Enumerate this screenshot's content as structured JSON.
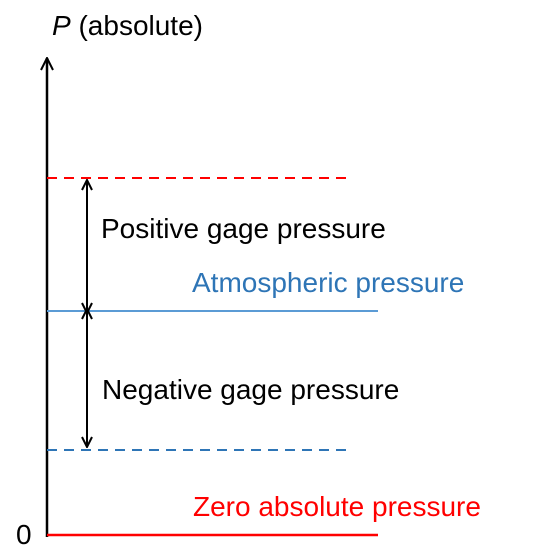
{
  "axis": {
    "variable": "P",
    "qualifier": "(absolute)",
    "origin_label": "0"
  },
  "levels": {
    "positive": {
      "label": "Positive gage pressure",
      "color": "#ff0000",
      "line_style": "dashed"
    },
    "atmospheric": {
      "label": "Atmospheric pressure",
      "color": "#2e75b6",
      "line_style": "solid"
    },
    "negative": {
      "label": "Negative gage pressure",
      "color": "#2e75b6",
      "line_style": "dashed"
    },
    "zero": {
      "label": "Zero absolute pressure",
      "color": "#ff0000",
      "line_style": "solid"
    }
  },
  "colors": {
    "axis": "#000000",
    "text": "#000000"
  }
}
